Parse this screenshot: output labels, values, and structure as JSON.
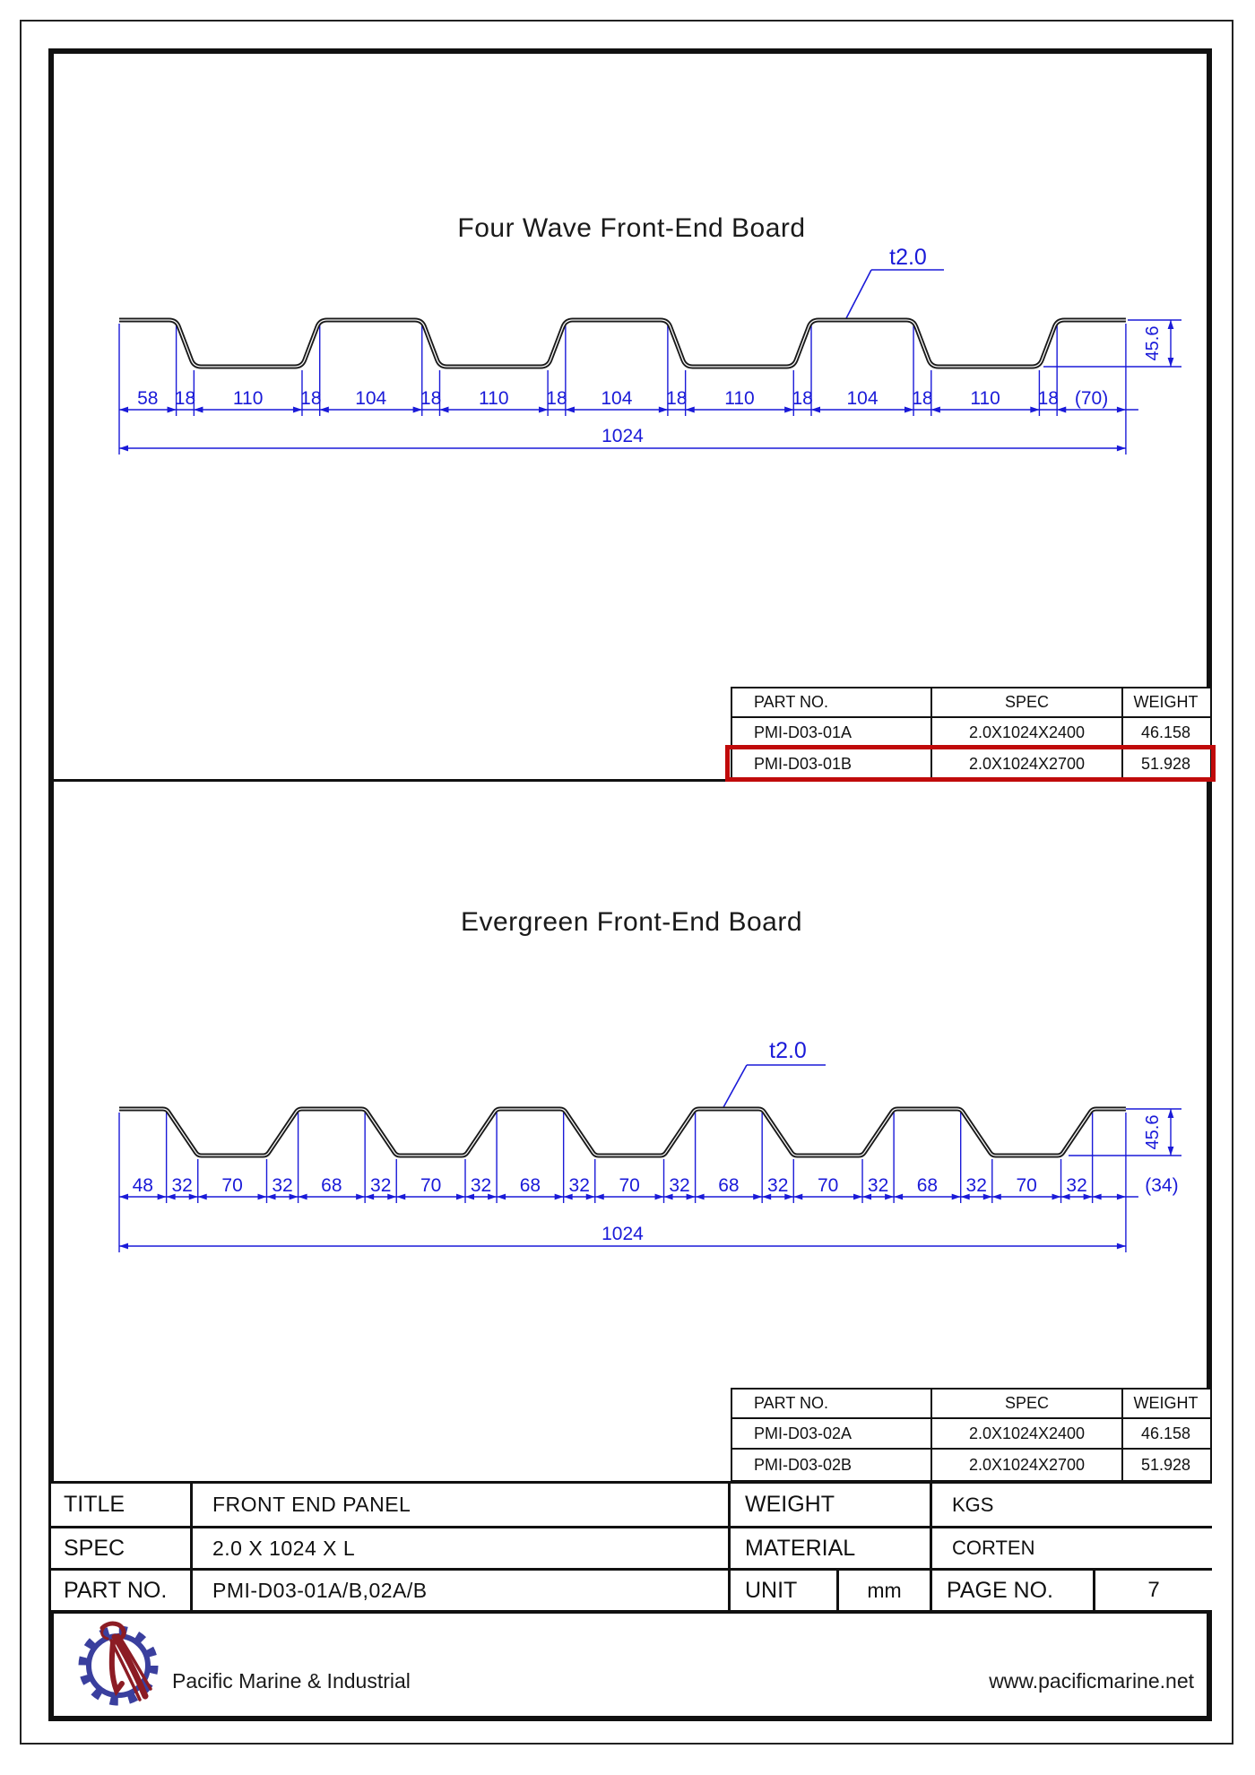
{
  "colors": {
    "dimension_blue": "#1a1ad8",
    "profile_black": "#1a1a1a",
    "highlight_red": "#c00a0a",
    "logo_blue": "#3a3f9e",
    "logo_red": "#8c1c24"
  },
  "drawings": [
    {
      "title": "Four Wave Front-End Board",
      "thickness_label": "t2.0",
      "height_label": "45.6",
      "total_label": "1024",
      "segments": [
        {
          "label": "58",
          "mm": 58,
          "slope": false
        },
        {
          "label": "18",
          "mm": 18,
          "slope": true
        },
        {
          "label": "110",
          "mm": 110,
          "slope": false
        },
        {
          "label": "18",
          "mm": 18,
          "slope": true
        },
        {
          "label": "104",
          "mm": 104,
          "slope": false
        },
        {
          "label": "18",
          "mm": 18,
          "slope": true
        },
        {
          "label": "110",
          "mm": 110,
          "slope": false
        },
        {
          "label": "18",
          "mm": 18,
          "slope": true
        },
        {
          "label": "104",
          "mm": 104,
          "slope": false
        },
        {
          "label": "18",
          "mm": 18,
          "slope": true
        },
        {
          "label": "110",
          "mm": 110,
          "slope": false
        },
        {
          "label": "18",
          "mm": 18,
          "slope": true
        },
        {
          "label": "104",
          "mm": 104,
          "slope": false
        },
        {
          "label": "18",
          "mm": 18,
          "slope": true
        },
        {
          "label": "110",
          "mm": 110,
          "slope": false
        },
        {
          "label": "18",
          "mm": 18,
          "slope": true
        },
        {
          "label": "(70)",
          "mm": 70,
          "slope": false
        }
      ],
      "table": {
        "headers": [
          "PART NO.",
          "SPEC",
          "WEIGHT"
        ],
        "rows": [
          [
            "PMI-D03-01A",
            "2.0X1024X2400",
            "46.158"
          ],
          [
            "PMI-D03-01B",
            "2.0X1024X2700",
            "51.928"
          ]
        ],
        "highlight_row_index": 1
      }
    },
    {
      "title": "Evergreen Front-End Board",
      "thickness_label": "t2.0",
      "height_label": "45.6",
      "total_label": "1024",
      "segments": [
        {
          "label": "48",
          "mm": 48,
          "slope": false
        },
        {
          "label": "32",
          "mm": 32,
          "slope": true
        },
        {
          "label": "70",
          "mm": 70,
          "slope": false
        },
        {
          "label": "32",
          "mm": 32,
          "slope": true
        },
        {
          "label": "68",
          "mm": 68,
          "slope": false
        },
        {
          "label": "32",
          "mm": 32,
          "slope": true
        },
        {
          "label": "70",
          "mm": 70,
          "slope": false
        },
        {
          "label": "32",
          "mm": 32,
          "slope": true
        },
        {
          "label": "68",
          "mm": 68,
          "slope": false
        },
        {
          "label": "32",
          "mm": 32,
          "slope": true
        },
        {
          "label": "70",
          "mm": 70,
          "slope": false
        },
        {
          "label": "32",
          "mm": 32,
          "slope": true
        },
        {
          "label": "68",
          "mm": 68,
          "slope": false
        },
        {
          "label": "32",
          "mm": 32,
          "slope": true
        },
        {
          "label": "70",
          "mm": 70,
          "slope": false
        },
        {
          "label": "32",
          "mm": 32,
          "slope": true
        },
        {
          "label": "68",
          "mm": 68,
          "slope": false
        },
        {
          "label": "32",
          "mm": 32,
          "slope": true
        },
        {
          "label": "70",
          "mm": 70,
          "slope": false
        },
        {
          "label": "32",
          "mm": 32,
          "slope": true
        },
        {
          "label": "(34)",
          "mm": 34,
          "slope": false
        }
      ],
      "table": {
        "headers": [
          "PART NO.",
          "SPEC",
          "WEIGHT"
        ],
        "rows": [
          [
            "PMI-D03-02A",
            "2.0X1024X2400",
            "46.158"
          ],
          [
            "PMI-D03-02B",
            "2.0X1024X2700",
            "51.928"
          ]
        ],
        "highlight_row_index": null
      }
    }
  ],
  "title_block": {
    "rows": [
      {
        "label": "TITLE",
        "value": "FRONT END PANEL",
        "right_label": "WEIGHT",
        "right_value": "KGS"
      },
      {
        "label": "SPEC",
        "value": "2.0 X 1024 X L",
        "right_label": "MATERIAL",
        "right_value": "CORTEN"
      },
      {
        "label": "PART NO.",
        "value": "PMI-D03-01A/B,02A/B",
        "right_label": "UNIT",
        "right_value": "mm",
        "page_label": "PAGE  NO.",
        "page_value": "7"
      }
    ]
  },
  "footer": {
    "company": "Pacific Marine & Industrial",
    "website": "www.pacificmarine.net",
    "logo": "pelican-gear-logo"
  }
}
